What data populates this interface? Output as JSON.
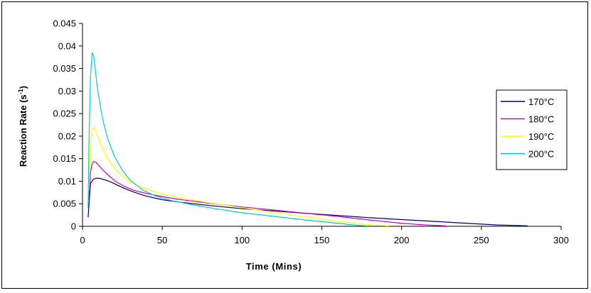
{
  "chart_data": {
    "type": "line",
    "title": "",
    "xlabel": "Time (Mins)",
    "ylabel_main": "Reaction Rate (s",
    "ylabel_sup": "-1",
    "ylabel_close": ")",
    "xlim": [
      0,
      300
    ],
    "ylim": [
      0,
      0.045
    ],
    "xticks": [
      "0",
      "50",
      "100",
      "150",
      "200",
      "250",
      "300"
    ],
    "yticks": [
      "0",
      "0.005",
      "0.01",
      "0.015",
      "0.02",
      "0.025",
      "0.03",
      "0.035",
      "0.04",
      "0.045"
    ],
    "grid": false,
    "legend_position": "right",
    "series": [
      {
        "name": "170°C",
        "color": "#000066",
        "x": [
          3.5,
          5,
          7,
          9,
          11,
          14,
          18,
          22,
          27,
          32,
          40,
          50,
          60,
          80,
          100,
          120,
          140,
          160,
          180,
          200,
          220,
          240,
          260,
          270,
          279
        ],
        "y": [
          0.002,
          0.0095,
          0.0105,
          0.0107,
          0.0106,
          0.0103,
          0.0098,
          0.0091,
          0.0083,
          0.0076,
          0.0067,
          0.0059,
          0.0054,
          0.0046,
          0.0039,
          0.0034,
          0.0029,
          0.0024,
          0.0019,
          0.0015,
          0.0011,
          0.0007,
          0.0003,
          0.0002,
          0.0001
        ]
      },
      {
        "name": "180°C",
        "color": "#cc00cc",
        "x": [
          4,
          5,
          6,
          7,
          8.5,
          10,
          13,
          17,
          21,
          26,
          32,
          40,
          50,
          60,
          80,
          100,
          120,
          140,
          160,
          180,
          200,
          215,
          228
        ],
        "y": [
          0.006,
          0.012,
          0.0138,
          0.0144,
          0.0142,
          0.0136,
          0.0124,
          0.0111,
          0.0099,
          0.0089,
          0.008,
          0.0073,
          0.0066,
          0.006,
          0.0051,
          0.0043,
          0.0036,
          0.0029,
          0.0022,
          0.0014,
          0.0007,
          0.0003,
          0.0001
        ]
      },
      {
        "name": "190°C",
        "color": "#ffff00",
        "x": [
          4,
          5,
          6,
          7,
          8,
          10,
          12,
          15,
          19,
          24,
          30,
          38,
          48,
          60,
          80,
          100,
          120,
          140,
          160,
          175,
          185,
          192
        ],
        "y": [
          0.008,
          0.019,
          0.0215,
          0.022,
          0.0214,
          0.0195,
          0.0177,
          0.0155,
          0.0133,
          0.0114,
          0.0098,
          0.0085,
          0.0074,
          0.0064,
          0.0052,
          0.0041,
          0.0031,
          0.0021,
          0.0011,
          0.0005,
          0.0002,
          0.0001
        ]
      },
      {
        "name": "200°C",
        "color": "#00cccc",
        "x": [
          3.5,
          4,
          5,
          6,
          7,
          8,
          9,
          11,
          13,
          16,
          20,
          25,
          30,
          38,
          46,
          56,
          70,
          85,
          100,
          120,
          140,
          160,
          170,
          178
        ],
        "y": [
          0.004,
          0.018,
          0.033,
          0.0385,
          0.0378,
          0.035,
          0.0315,
          0.027,
          0.0232,
          0.0192,
          0.0155,
          0.0124,
          0.0102,
          0.008,
          0.0067,
          0.0057,
          0.0047,
          0.0038,
          0.003,
          0.0022,
          0.0014,
          0.0007,
          0.0003,
          0.0001
        ]
      }
    ]
  }
}
